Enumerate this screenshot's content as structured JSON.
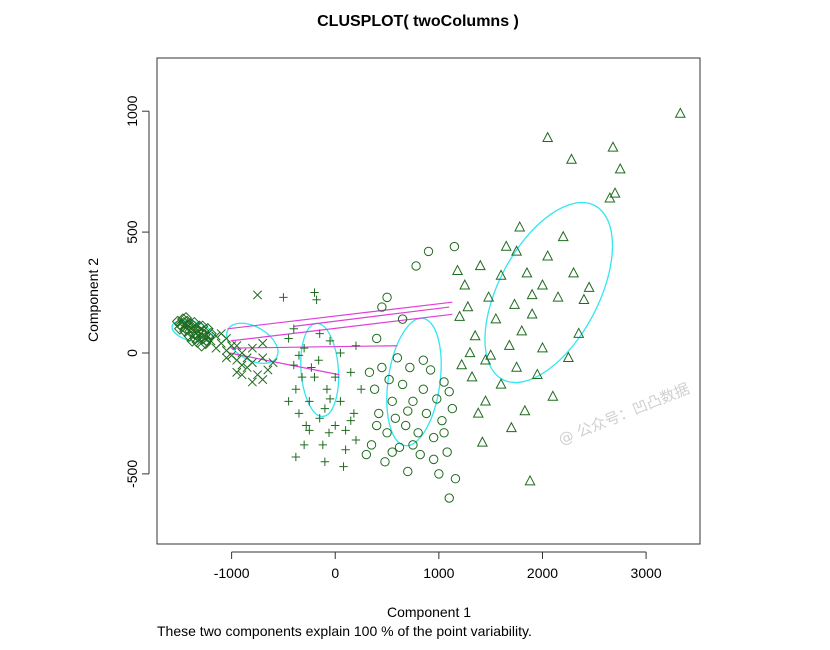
{
  "chart_data": {
    "type": "scatter",
    "title": "CLUSPLOT( twoColumns )",
    "xlabel": "Component 1",
    "ylabel": "Component 2",
    "subtitle": "These two components explain 100 % of the point variability.",
    "xlim": [
      -1720,
      3520
    ],
    "ylim": [
      -790,
      1220
    ],
    "x_ticks": [
      -1000,
      0,
      1000,
      2000,
      3000
    ],
    "x_tick_labels": [
      "-1000",
      "0",
      "1000",
      "2000",
      "3000"
    ],
    "y_ticks": [
      -500,
      0,
      500,
      1000
    ],
    "y_tick_labels": [
      "-500",
      "0",
      "500",
      "1000"
    ],
    "grid": false,
    "legend": "none",
    "colors": {
      "points": "#1f6b1f",
      "ellipses": "#33e6f0",
      "lines": "#e040d8",
      "axes": "#333333"
    },
    "clusters": [
      {
        "marker": "diamond",
        "ellipse": {
          "cx": -1380,
          "cy": 90,
          "a": 200,
          "b": 95,
          "angle": -15
        },
        "points": [
          [
            -1520,
            130
          ],
          [
            -1500,
            120
          ],
          [
            -1480,
            110
          ],
          [
            -1460,
            125
          ],
          [
            -1440,
            100
          ],
          [
            -1420,
            115
          ],
          [
            -1400,
            90
          ],
          [
            -1380,
            105
          ],
          [
            -1360,
            80
          ],
          [
            -1340,
            100
          ],
          [
            -1320,
            70
          ],
          [
            -1300,
            85
          ],
          [
            -1280,
            60
          ],
          [
            -1260,
            75
          ],
          [
            -1240,
            50
          ],
          [
            -1220,
            65
          ],
          [
            -1500,
            100
          ],
          [
            -1470,
            140
          ],
          [
            -1430,
            130
          ],
          [
            -1390,
            120
          ],
          [
            -1350,
            60
          ],
          [
            -1310,
            110
          ],
          [
            -1270,
            90
          ],
          [
            -1250,
            40
          ],
          [
            -1230,
            100
          ],
          [
            -1410,
            70
          ],
          [
            -1450,
            90
          ],
          [
            -1490,
            115
          ],
          [
            -1330,
            45
          ],
          [
            -1290,
            30
          ],
          [
            -1200,
            80
          ],
          [
            -1360,
            125
          ],
          [
            -1440,
            145
          ],
          [
            -1380,
            50
          ],
          [
            -1320,
            90
          ],
          [
            -1280,
            110
          ]
        ]
      },
      {
        "marker": "x",
        "ellipse": {
          "cx": -800,
          "cy": 40,
          "a": 270,
          "b": 160,
          "angle": -30
        },
        "points": [
          [
            -1200,
            50
          ],
          [
            -1150,
            20
          ],
          [
            -1100,
            40
          ],
          [
            -1050,
            10
          ],
          [
            -1000,
            -10
          ],
          [
            -950,
            -30
          ],
          [
            -900,
            0
          ],
          [
            -850,
            -60
          ],
          [
            -800,
            -40
          ],
          [
            -750,
            -90
          ],
          [
            -700,
            -110
          ],
          [
            -650,
            -70
          ],
          [
            -1100,
            80
          ],
          [
            -1050,
            60
          ],
          [
            -950,
            30
          ],
          [
            -900,
            -50
          ],
          [
            -850,
            -20
          ],
          [
            -800,
            20
          ],
          [
            -750,
            240
          ],
          [
            -700,
            40
          ],
          [
            -1000,
            30
          ],
          [
            -950,
            -80
          ],
          [
            -900,
            -90
          ],
          [
            -800,
            -120
          ],
          [
            -1150,
            70
          ],
          [
            -1050,
            -20
          ],
          [
            -700,
            -20
          ],
          [
            -600,
            -40
          ]
        ]
      },
      {
        "marker": "plus",
        "ellipse": {
          "cx": -150,
          "cy": -70,
          "a": 450,
          "b": 180,
          "angle": -86
        },
        "points": [
          [
            -500,
            230
          ],
          [
            -450,
            60
          ],
          [
            -400,
            -50
          ],
          [
            -380,
            -150
          ],
          [
            -350,
            -250
          ],
          [
            -320,
            -100
          ],
          [
            -300,
            20
          ],
          [
            -280,
            -300
          ],
          [
            -250,
            -200
          ],
          [
            -230,
            -60
          ],
          [
            -200,
            250
          ],
          [
            -180,
            220
          ],
          [
            -160,
            -30
          ],
          [
            -150,
            -270
          ],
          [
            -120,
            -380
          ],
          [
            -100,
            -450
          ],
          [
            -80,
            -150
          ],
          [
            -60,
            -330
          ],
          [
            -50,
            50
          ],
          [
            0,
            -100
          ],
          [
            50,
            -200
          ],
          [
            80,
            -470
          ],
          [
            100,
            -320
          ],
          [
            150,
            -80
          ],
          [
            180,
            -250
          ],
          [
            200,
            -360
          ],
          [
            250,
            -150
          ],
          [
            -400,
            100
          ],
          [
            -350,
            -10
          ],
          [
            -300,
            -380
          ],
          [
            -200,
            -100
          ],
          [
            -150,
            80
          ],
          [
            -100,
            -230
          ],
          [
            -50,
            -190
          ],
          [
            0,
            -300
          ],
          [
            50,
            0
          ],
          [
            100,
            -400
          ],
          [
            150,
            -280
          ],
          [
            200,
            30
          ],
          [
            -450,
            -200
          ],
          [
            -380,
            -430
          ],
          [
            -250,
            -320
          ]
        ]
      },
      {
        "marker": "circle",
        "ellipse": {
          "cx": 760,
          "cy": -120,
          "a": 620,
          "b": 250,
          "angle": 82
        },
        "points": [
          [
            300,
            -420
          ],
          [
            330,
            -80
          ],
          [
            350,
            -380
          ],
          [
            380,
            -150
          ],
          [
            400,
            60
          ],
          [
            420,
            -250
          ],
          [
            450,
            190
          ],
          [
            480,
            -450
          ],
          [
            500,
            -330
          ],
          [
            520,
            -110
          ],
          [
            550,
            -200
          ],
          [
            580,
            -270
          ],
          [
            600,
            -20
          ],
          [
            620,
            -390
          ],
          [
            650,
            -130
          ],
          [
            680,
            -300
          ],
          [
            700,
            -490
          ],
          [
            720,
            -60
          ],
          [
            750,
            -200
          ],
          [
            780,
            360
          ],
          [
            800,
            -330
          ],
          [
            820,
            -420
          ],
          [
            850,
            -150
          ],
          [
            880,
            -250
          ],
          [
            900,
            420
          ],
          [
            920,
            -70
          ],
          [
            950,
            -350
          ],
          [
            980,
            -190
          ],
          [
            1000,
            -500
          ],
          [
            1030,
            -280
          ],
          [
            1050,
            -120
          ],
          [
            1080,
            -410
          ],
          [
            1100,
            -600
          ],
          [
            1130,
            -230
          ],
          [
            1150,
            440
          ],
          [
            1160,
            -520
          ],
          [
            400,
            -300
          ],
          [
            450,
            -60
          ],
          [
            500,
            230
          ],
          [
            550,
            -410
          ],
          [
            650,
            140
          ],
          [
            700,
            -240
          ],
          [
            750,
            -380
          ],
          [
            850,
            -30
          ],
          [
            950,
            -440
          ],
          [
            1050,
            -330
          ],
          [
            1100,
            -160
          ]
        ]
      },
      {
        "marker": "triangle",
        "ellipse": {
          "cx": 2060,
          "cy": 250,
          "a": 950,
          "b": 480,
          "angle": 62
        },
        "points": [
          [
            1180,
            340
          ],
          [
            1200,
            150
          ],
          [
            1220,
            -50
          ],
          [
            1250,
            280
          ],
          [
            1280,
            190
          ],
          [
            1300,
            0
          ],
          [
            1320,
            -100
          ],
          [
            1350,
            70
          ],
          [
            1380,
            -250
          ],
          [
            1400,
            360
          ],
          [
            1420,
            -370
          ],
          [
            1450,
            -200
          ],
          [
            1480,
            230
          ],
          [
            1500,
            -10
          ],
          [
            1550,
            140
          ],
          [
            1600,
            -130
          ],
          [
            1650,
            440
          ],
          [
            1680,
            30
          ],
          [
            1700,
            -310
          ],
          [
            1730,
            200
          ],
          [
            1750,
            -60
          ],
          [
            1780,
            520
          ],
          [
            1800,
            90
          ],
          [
            1830,
            -240
          ],
          [
            1850,
            330
          ],
          [
            1880,
            -530
          ],
          [
            1900,
            160
          ],
          [
            1950,
            -90
          ],
          [
            2000,
            280
          ],
          [
            2050,
            400
          ],
          [
            2100,
            -180
          ],
          [
            2150,
            230
          ],
          [
            2200,
            480
          ],
          [
            2250,
            -20
          ],
          [
            2300,
            330
          ],
          [
            2350,
            80
          ],
          [
            2400,
            220
          ],
          [
            2450,
            270
          ],
          [
            2650,
            640
          ],
          [
            2700,
            660
          ],
          [
            2750,
            760
          ],
          [
            2680,
            850
          ],
          [
            2280,
            800
          ],
          [
            2050,
            890
          ],
          [
            3330,
            990
          ],
          [
            1900,
            240
          ],
          [
            1600,
            320
          ],
          [
            1450,
            -30
          ],
          [
            1750,
            420
          ],
          [
            2000,
            20
          ]
        ]
      }
    ],
    "connecting_lines": [
      [
        [
          -1040,
          100
        ],
        [
          1130,
          210
        ]
      ],
      [
        [
          -1010,
          50
        ],
        [
          1130,
          160
        ]
      ],
      [
        [
          -1010,
          20
        ],
        [
          600,
          30
        ]
      ],
      [
        [
          -1020,
          0
        ],
        [
          40,
          -90
        ]
      ],
      [
        [
          -400,
          110
        ],
        [
          1100,
          190
        ]
      ]
    ]
  },
  "watermark": "@ 公众号：凹凸数据"
}
